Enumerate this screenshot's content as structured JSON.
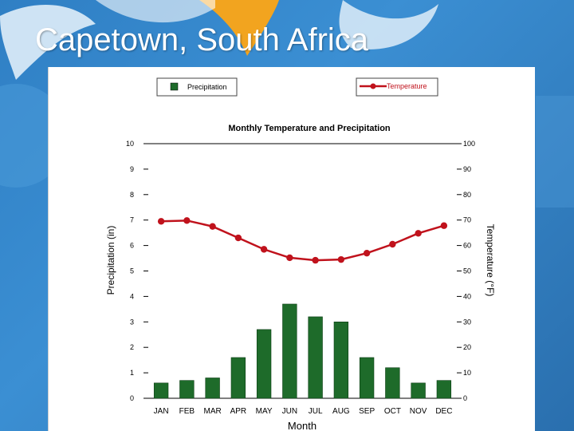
{
  "slide": {
    "title": "Capetown, South Africa"
  },
  "colors": {
    "bar": "#1e6b2a",
    "line": "#c0121c",
    "axis": "#000000"
  },
  "chart_data": {
    "type": "bar+line",
    "title": "Monthly Temperature and Precipitation",
    "xlabel": "Month",
    "ylabel_left": "Precipitation (in)",
    "ylabel_right": "Temperature (°F)",
    "categories": [
      "JAN",
      "FEB",
      "MAR",
      "APR",
      "MAY",
      "JUN",
      "JUL",
      "AUG",
      "SEP",
      "OCT",
      "NOV",
      "DEC"
    ],
    "ylim_left": [
      0,
      10
    ],
    "ylim_right": [
      0,
      100
    ],
    "left_ticks": [
      "0",
      "1",
      "2",
      "3",
      "4",
      "5",
      "6",
      "7",
      "8",
      "9",
      "10"
    ],
    "right_ticks": [
      "0",
      "10",
      "20",
      "30",
      "40",
      "50",
      "60",
      "70",
      "80",
      "90",
      "100"
    ],
    "legend": {
      "precipitation": "Precipitation",
      "temperature": "Temperature"
    },
    "series": [
      {
        "name": "Precipitation",
        "type": "bar",
        "axis": "left",
        "values": [
          0.6,
          0.7,
          0.8,
          1.6,
          2.7,
          3.7,
          3.2,
          3.0,
          1.6,
          1.2,
          0.6,
          0.7
        ]
      },
      {
        "name": "Temperature",
        "type": "line",
        "axis": "right",
        "values": [
          69.5,
          69.8,
          67.5,
          63.0,
          58.5,
          55.2,
          54.2,
          54.5,
          57.0,
          60.5,
          64.8,
          67.8
        ]
      }
    ]
  }
}
